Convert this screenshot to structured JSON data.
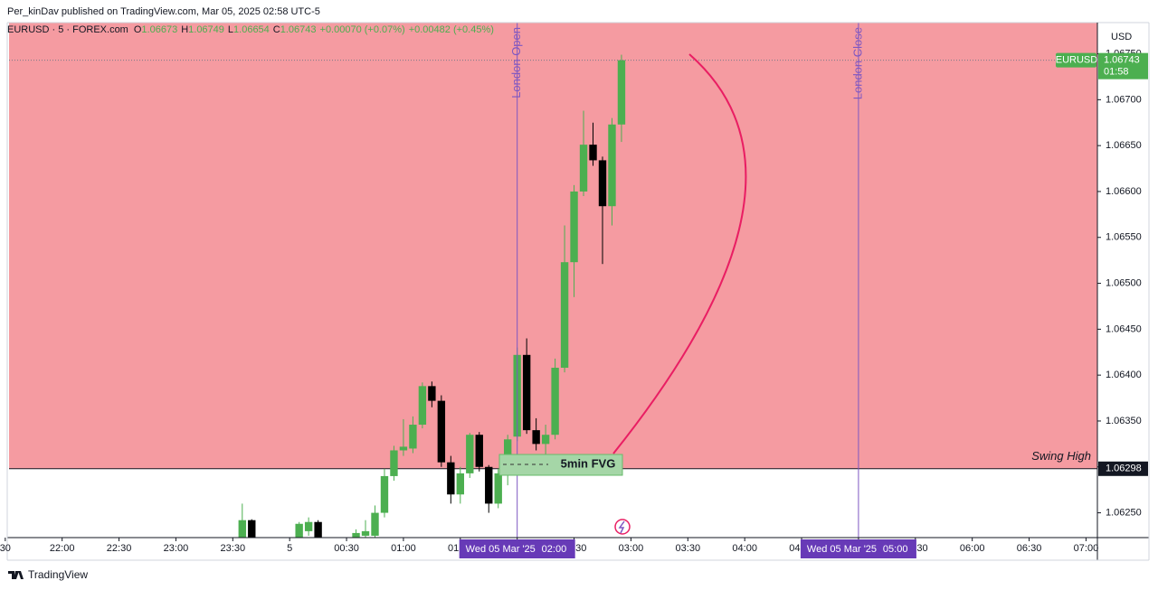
{
  "header": {
    "text": "Per_kinDav published on TradingView.com, Mar 05, 2025 02:58 UTC-5"
  },
  "footer": {
    "brand": "TradingView"
  },
  "chart_data": {
    "type": "candlestick",
    "legend": {
      "symbol": "EURUSD · 5 · FOREX.com",
      "letters": [
        "O",
        "H",
        "L",
        "C"
      ],
      "change": "+0.00070 (+0.07%)",
      "change_since": "+0.00482 (+0.45%)"
    },
    "currency": "USD",
    "price_tag": {
      "symbol": "EURUSD",
      "countdown": "01:58"
    },
    "up_color": "#4caf50",
    "down_color": "#000000",
    "x": [
      "23:35",
      "23:40",
      "00:05",
      "00:10",
      "00:15",
      "00:35",
      "00:40",
      "00:45",
      "00:50",
      "00:55",
      "01:00",
      "01:05",
      "01:10",
      "01:15",
      "01:20",
      "01:25",
      "01:30",
      "01:35",
      "01:40",
      "01:45",
      "01:50",
      "01:55",
      "02:00",
      "02:05",
      "02:10",
      "02:15",
      "02:20",
      "02:25",
      "02:30",
      "02:35",
      "02:40",
      "02:45",
      "02:50",
      "02:55"
    ],
    "open": [
      1.0622,
      1.06242,
      1.0622,
      1.0623,
      1.0624,
      1.06222,
      1.06225,
      1.06225,
      1.0625,
      1.0629,
      1.06318,
      1.0632,
      1.06346,
      1.06388,
      1.06372,
      1.06305,
      1.0627,
      1.06293,
      1.06335,
      1.063,
      1.0626,
      1.06293,
      1.06333,
      1.06422,
      1.0634,
      1.06325,
      1.06335,
      1.06408,
      1.06523,
      1.066,
      1.06651,
      1.06634,
      1.06584,
      1.06673
    ],
    "high": [
      1.0626,
      1.06243,
      1.0624,
      1.06245,
      1.06242,
      1.06232,
      1.06242,
      1.06258,
      1.06298,
      1.06323,
      1.06352,
      1.06355,
      1.06392,
      1.06393,
      1.06378,
      1.06312,
      1.063,
      1.06337,
      1.06338,
      1.06302,
      1.06298,
      1.06335,
      1.0643,
      1.0644,
      1.06353,
      1.06346,
      1.06418,
      1.06563,
      1.06607,
      1.06688,
      1.06675,
      1.06638,
      1.0668,
      1.06749
    ],
    "low": [
      1.06215,
      1.06215,
      1.06215,
      1.06225,
      1.06215,
      1.06218,
      1.0622,
      1.0622,
      1.06245,
      1.06285,
      1.06312,
      1.06315,
      1.06342,
      1.06365,
      1.063,
      1.0626,
      1.0626,
      1.06288,
      1.06295,
      1.0625,
      1.06255,
      1.0628,
      1.06328,
      1.06336,
      1.06318,
      1.06308,
      1.0633,
      1.06403,
      1.06485,
      1.06595,
      1.06628,
      1.06521,
      1.06563,
      1.06654
    ],
    "close": [
      1.06242,
      1.0622,
      1.06238,
      1.0624,
      1.0622,
      1.06228,
      1.0623,
      1.0625,
      1.0629,
      1.06318,
      1.06322,
      1.06346,
      1.06388,
      1.06372,
      1.06305,
      1.0627,
      1.06293,
      1.06335,
      1.063,
      1.0626,
      1.06293,
      1.0633,
      1.06422,
      1.0634,
      1.06325,
      1.06335,
      1.06408,
      1.06523,
      1.066,
      1.06651,
      1.06634,
      1.06584,
      1.06673,
      1.06743
    ],
    "xlim": [
      "21:32",
      "07:06"
    ],
    "xticks": [
      {
        "value": "21:30",
        "label": "30"
      },
      "22:00",
      "22:30",
      "23:00",
      "23:30",
      {
        "value": "00:00",
        "label": "5"
      },
      "00:30",
      "01:00",
      "01:30",
      "02:00",
      "02:30",
      "03:00",
      "03:30",
      "04:00",
      "04:30",
      "05:00",
      "05:30",
      "06:00",
      "06:30",
      "07:00"
    ],
    "ylim": [
      1.06223,
      1.06784
    ],
    "yticks": [
      {
        "value": 1.0625,
        "label": "1.06250"
      },
      {
        "value": 1.063,
        "label": "1.06300"
      },
      {
        "value": 1.0635,
        "label": "1.06350"
      },
      {
        "value": 1.064,
        "label": "1.06400"
      },
      {
        "value": 1.0645,
        "label": "1.06450"
      },
      {
        "value": 1.065,
        "label": "1.06500"
      },
      {
        "value": 1.0655,
        "label": "1.06550"
      },
      {
        "value": 1.066,
        "label": "1.06600"
      },
      {
        "value": 1.0665,
        "label": "1.06650"
      },
      {
        "value": 1.067,
        "label": "1.06700"
      },
      {
        "value": 1.0675,
        "label": "1.06750"
      }
    ],
    "level": {
      "label": "Swing High",
      "value": 1.06298,
      "color": "#f59ba1"
    },
    "sessions": [
      {
        "label": "London Open",
        "date": "Wed 05 Mar '25",
        "time": "02:00"
      },
      {
        "label": "London Close",
        "date": "Wed 05 Mar '25",
        "time": "05:00"
      }
    ],
    "fvg": {
      "label": "5min FVG"
    }
  }
}
